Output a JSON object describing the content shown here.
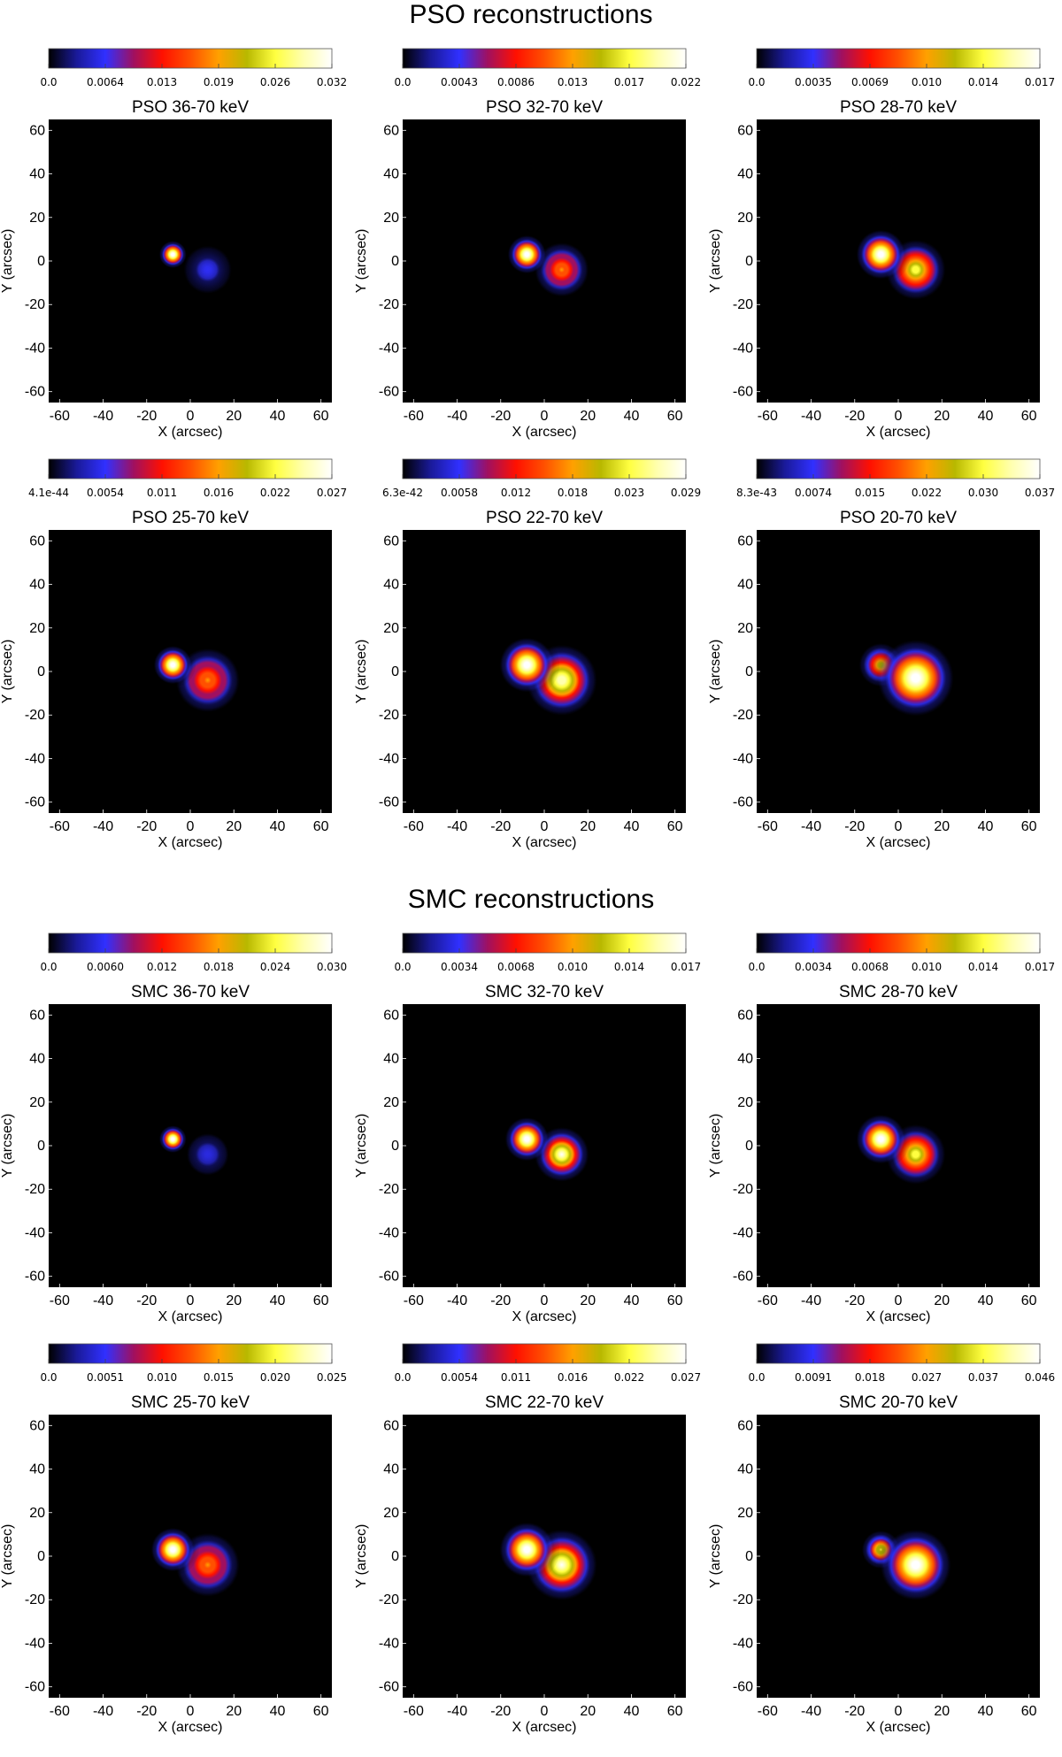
{
  "sections": [
    {
      "title": "PSO reconstructions"
    },
    {
      "title": "SMC reconstructions"
    }
  ],
  "colors": {
    "background": "#000000",
    "colormap": [
      "#000000",
      "#1a1a9a",
      "#3030ff",
      "#a01060",
      "#ff1000",
      "#ff5000",
      "#ffa000",
      "#b8b800",
      "#ffff40",
      "#ffffb0",
      "#ffffff"
    ]
  },
  "chart_data": [
    {
      "type": "heatmap",
      "title": "PSO 36-70 keV",
      "xlabel": "X (arcsec)",
      "ylabel": "Y (arcsec)",
      "xlim": [
        -65,
        65
      ],
      "ylim": [
        -65,
        65
      ],
      "xticks": [
        "-60",
        "-40",
        "-20",
        "0",
        "20",
        "40",
        "60"
      ],
      "yticks": [
        "-60",
        "-40",
        "-20",
        "0",
        "20",
        "40",
        "60"
      ],
      "colorbar_ticks": [
        "0.0",
        "0.0064",
        "0.013",
        "0.019",
        "0.026",
        "0.032"
      ],
      "sources": [
        {
          "x": -8,
          "y": 3,
          "sigma": 2.5,
          "peak": 1.0
        },
        {
          "x": 8,
          "y": -4,
          "sigma": 5.5,
          "peak": 0.24
        }
      ]
    },
    {
      "type": "heatmap",
      "title": "PSO 32-70 keV",
      "xlabel": "X (arcsec)",
      "ylabel": "Y (arcsec)",
      "xlim": [
        -65,
        65
      ],
      "ylim": [
        -65,
        65
      ],
      "xticks": [
        "-60",
        "-40",
        "-20",
        "0",
        "20",
        "40",
        "60"
      ],
      "yticks": [
        "-60",
        "-40",
        "-20",
        "0",
        "20",
        "40",
        "60"
      ],
      "colorbar_ticks": [
        "0.0",
        "0.0043",
        "0.0086",
        "0.013",
        "0.017",
        "0.022"
      ],
      "sources": [
        {
          "x": -8,
          "y": 3,
          "sigma": 3.5,
          "peak": 1.0
        },
        {
          "x": 8,
          "y": -4,
          "sigma": 5.5,
          "peak": 0.55
        }
      ]
    },
    {
      "type": "heatmap",
      "title": "PSO 28-70 keV",
      "xlabel": "X (arcsec)",
      "ylabel": "Y (arcsec)",
      "xlim": [
        -65,
        65
      ],
      "ylim": [
        -65,
        65
      ],
      "xticks": [
        "-60",
        "-40",
        "-20",
        "0",
        "20",
        "40",
        "60"
      ],
      "yticks": [
        "-60",
        "-40",
        "-20",
        "0",
        "20",
        "40",
        "60"
      ],
      "colorbar_ticks": [
        "0.0",
        "0.0035",
        "0.0069",
        "0.010",
        "0.014",
        "0.017"
      ],
      "sources": [
        {
          "x": -8,
          "y": 3,
          "sigma": 4.5,
          "peak": 1.0
        },
        {
          "x": 8,
          "y": -4,
          "sigma": 5.5,
          "peak": 0.8
        }
      ]
    },
    {
      "type": "heatmap",
      "title": "PSO 25-70 keV",
      "xlabel": "X (arcsec)",
      "ylabel": "Y (arcsec)",
      "xlim": [
        -65,
        65
      ],
      "ylim": [
        -65,
        65
      ],
      "xticks": [
        "-60",
        "-40",
        "-20",
        "0",
        "20",
        "40",
        "60"
      ],
      "yticks": [
        "-60",
        "-40",
        "-20",
        "0",
        "20",
        "40",
        "60"
      ],
      "colorbar_ticks": [
        "4.1e-44",
        "0.0054",
        "0.011",
        "0.016",
        "0.022",
        "0.027"
      ],
      "sources": [
        {
          "x": -8,
          "y": 3,
          "sigma": 3.5,
          "peak": 1.0
        },
        {
          "x": 8,
          "y": -4,
          "sigma": 6.5,
          "peak": 0.55
        }
      ]
    },
    {
      "type": "heatmap",
      "title": "PSO 22-70 keV",
      "xlabel": "X (arcsec)",
      "ylabel": "Y (arcsec)",
      "xlim": [
        -65,
        65
      ],
      "ylim": [
        -65,
        65
      ],
      "xticks": [
        "-60",
        "-40",
        "-20",
        "0",
        "20",
        "40",
        "60"
      ],
      "yticks": [
        "-60",
        "-40",
        "-20",
        "0",
        "20",
        "40",
        "60"
      ],
      "colorbar_ticks": [
        "6.3e-42",
        "0.0058",
        "0.012",
        "0.018",
        "0.023",
        "0.029"
      ],
      "sources": [
        {
          "x": -8,
          "y": 3,
          "sigma": 5.0,
          "peak": 1.0
        },
        {
          "x": 8,
          "y": -4,
          "sigma": 6.5,
          "peak": 0.92
        }
      ]
    },
    {
      "type": "heatmap",
      "title": "PSO 20-70 keV",
      "xlabel": "X (arcsec)",
      "ylabel": "Y (arcsec)",
      "xlim": [
        -65,
        65
      ],
      "ylim": [
        -65,
        65
      ],
      "xticks": [
        "-60",
        "-40",
        "-20",
        "0",
        "20",
        "40",
        "60"
      ],
      "yticks": [
        "-60",
        "-40",
        "-20",
        "0",
        "20",
        "40",
        "60"
      ],
      "colorbar_ticks": [
        "8.3e-43",
        "0.0074",
        "0.015",
        "0.022",
        "0.030",
        "0.037"
      ],
      "sources": [
        {
          "x": -8,
          "y": 3,
          "sigma": 4.0,
          "peak": 0.7
        },
        {
          "x": 8,
          "y": -3,
          "sigma": 7.0,
          "peak": 1.0
        }
      ]
    },
    {
      "type": "heatmap",
      "title": "SMC 36-70 keV",
      "xlabel": "X (arcsec)",
      "ylabel": "Y (arcsec)",
      "xlim": [
        -65,
        65
      ],
      "ylim": [
        -65,
        65
      ],
      "xticks": [
        "-60",
        "-40",
        "-20",
        "0",
        "20",
        "40",
        "60"
      ],
      "yticks": [
        "-60",
        "-40",
        "-20",
        "0",
        "20",
        "40",
        "60"
      ],
      "colorbar_ticks": [
        "0.0",
        "0.0060",
        "0.012",
        "0.018",
        "0.024",
        "0.030"
      ],
      "sources": [
        {
          "x": -8,
          "y": 3,
          "sigma": 2.5,
          "peak": 1.0
        },
        {
          "x": 8,
          "y": -4,
          "sigma": 5.5,
          "peak": 0.22
        }
      ]
    },
    {
      "type": "heatmap",
      "title": "SMC 32-70 keV",
      "xlabel": "X (arcsec)",
      "ylabel": "Y (arcsec)",
      "xlim": [
        -65,
        65
      ],
      "ylim": [
        -65,
        65
      ],
      "xticks": [
        "-60",
        "-40",
        "-20",
        "0",
        "20",
        "40",
        "60"
      ],
      "yticks": [
        "-60",
        "-40",
        "-20",
        "0",
        "20",
        "40",
        "60"
      ],
      "colorbar_ticks": [
        "0.0",
        "0.0034",
        "0.0068",
        "0.010",
        "0.014",
        "0.017"
      ],
      "sources": [
        {
          "x": -8,
          "y": 3,
          "sigma": 4.0,
          "peak": 1.0
        },
        {
          "x": 8,
          "y": -4,
          "sigma": 5.0,
          "peak": 0.95
        }
      ]
    },
    {
      "type": "heatmap",
      "title": "SMC 28-70 keV",
      "xlabel": "X (arcsec)",
      "ylabel": "Y (arcsec)",
      "xlim": [
        -65,
        65
      ],
      "ylim": [
        -65,
        65
      ],
      "xticks": [
        "-60",
        "-40",
        "-20",
        "0",
        "20",
        "40",
        "60"
      ],
      "yticks": [
        "-60",
        "-40",
        "-20",
        "0",
        "20",
        "40",
        "60"
      ],
      "colorbar_ticks": [
        "0.0",
        "0.0034",
        "0.0068",
        "0.010",
        "0.014",
        "0.017"
      ],
      "sources": [
        {
          "x": -8,
          "y": 3,
          "sigma": 4.5,
          "peak": 1.0
        },
        {
          "x": 8,
          "y": -4,
          "sigma": 5.5,
          "peak": 0.8
        }
      ]
    },
    {
      "type": "heatmap",
      "title": "SMC 25-70 keV",
      "xlabel": "X (arcsec)",
      "ylabel": "Y (arcsec)",
      "xlim": [
        -65,
        65
      ],
      "ylim": [
        -65,
        65
      ],
      "xticks": [
        "-60",
        "-40",
        "-20",
        "0",
        "20",
        "40",
        "60"
      ],
      "yticks": [
        "-60",
        "-40",
        "-20",
        "0",
        "20",
        "40",
        "60"
      ],
      "colorbar_ticks": [
        "0.0",
        "0.0051",
        "0.010",
        "0.015",
        "0.020",
        "0.025"
      ],
      "sources": [
        {
          "x": -8,
          "y": 3,
          "sigma": 4.0,
          "peak": 1.0
        },
        {
          "x": 8,
          "y": -4,
          "sigma": 6.5,
          "peak": 0.55
        }
      ]
    },
    {
      "type": "heatmap",
      "title": "SMC 22-70 keV",
      "xlabel": "X (arcsec)",
      "ylabel": "Y (arcsec)",
      "xlim": [
        -65,
        65
      ],
      "ylim": [
        -65,
        65
      ],
      "xticks": [
        "-60",
        "-40",
        "-20",
        "0",
        "20",
        "40",
        "60"
      ],
      "yticks": [
        "-60",
        "-40",
        "-20",
        "0",
        "20",
        "40",
        "60"
      ],
      "colorbar_ticks": [
        "0.0",
        "0.0054",
        "0.011",
        "0.016",
        "0.022",
        "0.027"
      ],
      "sources": [
        {
          "x": -8,
          "y": 3,
          "sigma": 5.0,
          "peak": 1.0
        },
        {
          "x": 8,
          "y": -4,
          "sigma": 6.5,
          "peak": 0.95
        }
      ]
    },
    {
      "type": "heatmap",
      "title": "SMC 20-70 keV",
      "xlabel": "X (arcsec)",
      "ylabel": "Y (arcsec)",
      "xlim": [
        -65,
        65
      ],
      "ylim": [
        -65,
        65
      ],
      "xticks": [
        "-60",
        "-40",
        "-20",
        "0",
        "20",
        "40",
        "60"
      ],
      "yticks": [
        "-60",
        "-40",
        "-20",
        "0",
        "20",
        "40",
        "60"
      ],
      "colorbar_ticks": [
        "0.0",
        "0.0091",
        "0.018",
        "0.027",
        "0.037",
        "0.046"
      ],
      "sources": [
        {
          "x": -8,
          "y": 3,
          "sigma": 3.5,
          "peak": 0.75
        },
        {
          "x": 8,
          "y": -4,
          "sigma": 6.5,
          "peak": 1.0
        }
      ]
    }
  ]
}
